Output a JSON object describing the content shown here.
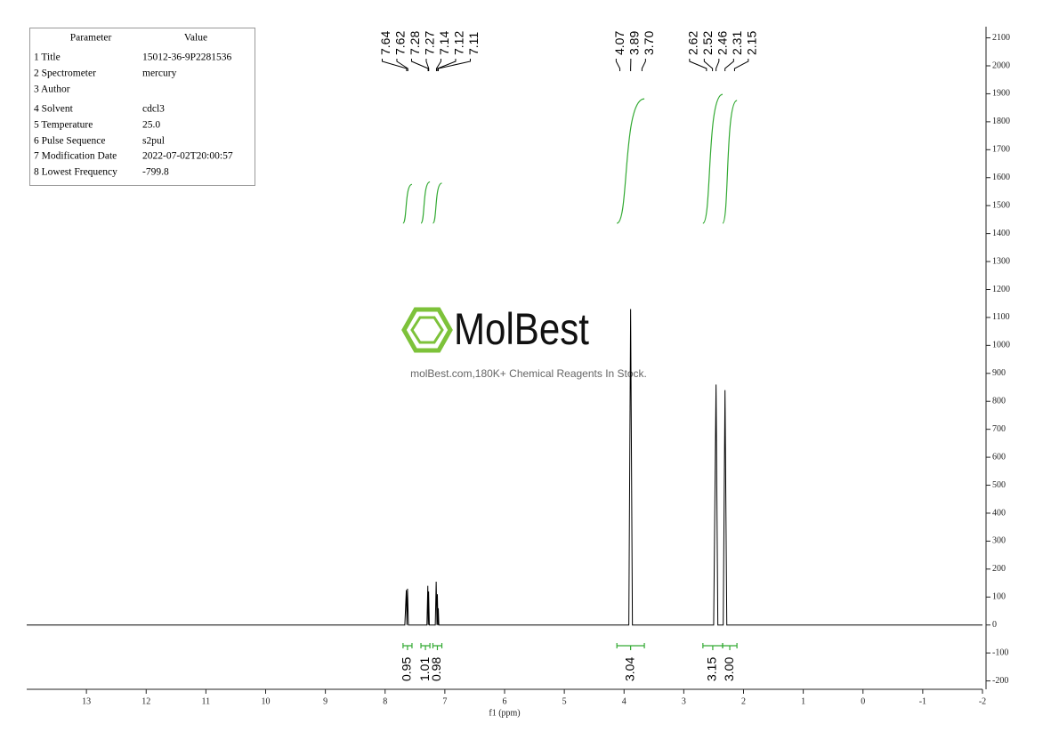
{
  "parameters": {
    "header": [
      "Parameter",
      "Value"
    ],
    "rows": [
      [
        "1 Title",
        "15012-36-9P2281536"
      ],
      [
        "2 Spectrometer",
        "mercury"
      ],
      [
        "3 Author"
      ],
      [
        "4 Solvent",
        "cdcl3"
      ],
      [
        "5 Temperature",
        "25.0"
      ],
      [
        "6 Pulse Sequence",
        "s2pul"
      ],
      [
        "7 Modification Date",
        "2022-07-02T20:00:57"
      ],
      [
        "8 Lowest Frequency",
        "-799.8"
      ]
    ]
  },
  "watermark": {
    "logo": "MolBest",
    "text": "molBest.com,180K+ Chemical Reagents In Stock."
  },
  "chart_data": {
    "type": "line",
    "x_label": "f1 (ppm)",
    "xlim": [
      14,
      -2
    ],
    "xticks": [
      13,
      12,
      11,
      10,
      9,
      8,
      7,
      6,
      5,
      4,
      3,
      2,
      1,
      0,
      -1,
      -2
    ],
    "ylim": [
      -230,
      2140
    ],
    "yticks": [
      -200,
      -100,
      0,
      100,
      200,
      300,
      400,
      500,
      600,
      700,
      800,
      900,
      1000,
      1100,
      1200,
      1300,
      1400,
      1500,
      1600,
      1700,
      1800,
      1900,
      2000,
      2100
    ],
    "x": [
      14,
      7.67,
      7.645,
      7.635,
      7.625,
      7.61,
      7.3,
      7.285,
      7.278,
      7.272,
      7.26,
      7.16,
      7.145,
      7.132,
      7.125,
      7.115,
      7.11,
      7.1,
      3.92,
      3.89,
      3.86,
      2.5,
      2.46,
      2.43,
      2.34,
      2.31,
      2.28,
      -2
    ],
    "series": [
      {
        "color": "#000000",
        "values": [
          0,
          0,
          125,
          0,
          130,
          0,
          0,
          140,
          0,
          120,
          0,
          0,
          155,
          0,
          110,
          0,
          60,
          0,
          0,
          1130,
          0,
          0,
          860,
          0,
          0,
          840,
          0,
          0
        ]
      }
    ],
    "peak_labels": [
      7.64,
      7.62,
      7.28,
      7.27,
      7.14,
      7.12,
      7.11,
      4.07,
      3.89,
      {
        "value": 3.7,
        "label": "3.70"
      },
      2.62,
      2.52,
      2.46,
      2.31,
      2.15
    ],
    "integrals": {
      "color": "#33aa33",
      "ranges": [
        [
          7.7,
          7.55
        ],
        [
          7.4,
          7.25
        ],
        [
          7.2,
          7.05
        ],
        [
          4.12,
          3.66
        ],
        [
          2.68,
          2.35
        ],
        [
          2.35,
          2.11
        ]
      ],
      "values": [
        0.95,
        1.01,
        0.98,
        3.04,
        3.15,
        3
      ],
      "value_labels": [
        "0.95",
        "1.01",
        "0.98",
        "3.04",
        "3.15",
        "3.00"
      ]
    }
  }
}
